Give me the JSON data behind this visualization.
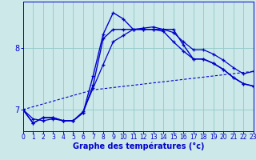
{
  "xlabel": "Graphe des températures (°c)",
  "background_color": "#cce8e8",
  "line_color": "#0000cc",
  "grid_color": "#99cccc",
  "xmin": 0,
  "xmax": 23,
  "ymin": 6.65,
  "ymax": 8.75,
  "yticks": [
    7,
    8
  ],
  "xticks": [
    0,
    1,
    2,
    3,
    4,
    5,
    6,
    7,
    8,
    9,
    10,
    11,
    12,
    13,
    14,
    15,
    16,
    17,
    18,
    19,
    20,
    21,
    22,
    23
  ],
  "curve1_x": [
    0,
    1,
    2,
    3,
    4,
    5,
    6,
    7,
    8,
    9,
    10,
    11,
    12,
    13,
    14,
    15,
    16,
    17,
    18,
    19,
    20,
    21,
    22,
    23
  ],
  "curve1_y": [
    7.0,
    6.78,
    6.87,
    6.87,
    6.82,
    6.82,
    6.95,
    7.55,
    8.22,
    8.57,
    8.47,
    8.3,
    8.3,
    8.3,
    8.27,
    8.1,
    7.95,
    7.82,
    7.82,
    7.75,
    7.65,
    7.52,
    7.42,
    7.38
  ],
  "curve2_x": [
    0,
    1,
    2,
    3,
    4,
    5,
    6,
    7,
    8,
    9,
    10,
    11,
    12,
    13,
    14,
    15,
    16,
    17,
    18,
    19,
    20,
    21,
    22,
    23
  ],
  "curve2_y": [
    7.0,
    6.78,
    6.87,
    6.87,
    6.82,
    6.82,
    6.95,
    7.4,
    8.15,
    8.3,
    8.3,
    8.3,
    8.3,
    8.3,
    8.3,
    8.3,
    8.05,
    7.82,
    7.82,
    7.75,
    7.65,
    7.52,
    7.42,
    7.38
  ],
  "curve3_x": [
    0,
    1,
    2,
    3,
    4,
    5,
    6,
    7,
    8,
    9,
    10,
    11,
    12,
    13,
    14,
    15,
    16,
    17,
    18,
    19,
    20,
    21,
    22,
    23
  ],
  "curve3_y": [
    7.0,
    6.85,
    6.82,
    6.85,
    6.82,
    6.82,
    6.97,
    7.35,
    7.73,
    8.1,
    8.2,
    8.3,
    8.32,
    8.34,
    8.3,
    8.25,
    8.1,
    7.97,
    7.97,
    7.9,
    7.8,
    7.68,
    7.58,
    7.62
  ],
  "curve4_x": [
    0,
    7,
    23
  ],
  "curve4_y": [
    7.0,
    7.32,
    7.62
  ]
}
